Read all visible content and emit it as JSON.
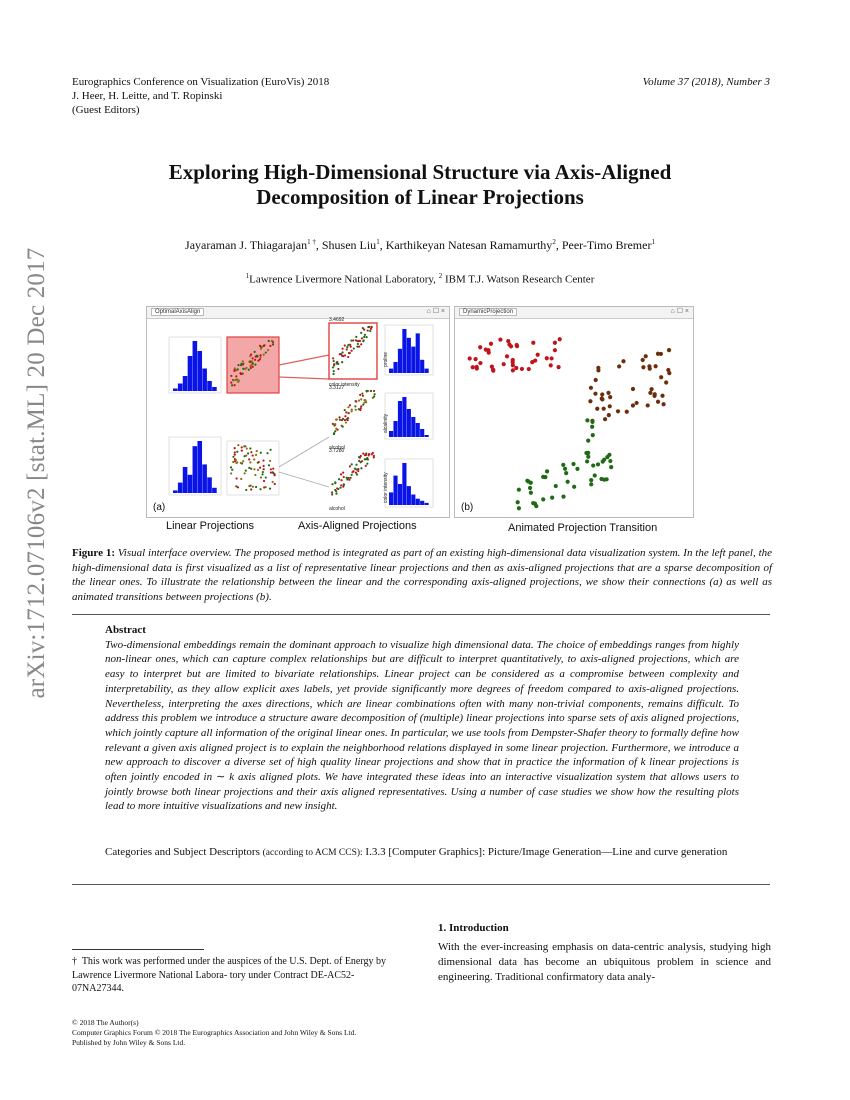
{
  "header": {
    "conf_line1": "Eurographics Conference on Visualization (EuroVis) 2018",
    "conf_line2": "J. Heer, H. Leitte, and T. Ropinski",
    "conf_line3": "(Guest Editors)",
    "volume": "Volume 37 (2018), Number 3"
  },
  "arxiv_stamp": "arXiv:1712.07106v2  [stat.ML]  20 Dec 2017",
  "title_line1": "Exploring High-Dimensional Structure via Axis-Aligned",
  "title_line2": "Decomposition of Linear Projections",
  "authors": {
    "a1": "Jayaraman J. Thiagarajan",
    "a1_sup": "1 †",
    "a2": "Shusen Liu",
    "a2_sup": "1",
    "a3": "Karthikeyan Natesan Ramamurthy",
    "a3_sup": "2",
    "a4": "Peer-Timo Bremer",
    "a4_sup": "1"
  },
  "affiliations": {
    "sup1": "1",
    "aff1": "Lawrence Livermore National Laboratory,",
    "sup2": "2",
    "aff2": "IBM T.J. Watson Research Center"
  },
  "figure": {
    "left_tab": "OptimalAxisAlign",
    "right_tab": "DynamicProjection",
    "tab_controls": "⌂ ☐ ×",
    "label_a": "(a)",
    "label_b": "(b)",
    "caption_linear": "Linear Projections",
    "caption_axis": "Axis-Aligned Projections",
    "caption_animated": "Animated Projection Transition",
    "ax_top_val1": "3.4692",
    "ax_top_val2": "3.3127",
    "ax_top_val3": "3.7280",
    "ax_label_color": "color intensity",
    "ax_label_alcohol": "alcohol",
    "ax_label_proline": "proline",
    "ax_label_alcalinity": "alcalinity",
    "ax_label_color2": "color intensity"
  },
  "figure_caption": {
    "label": "Figure 1:",
    "text": "Visual interface overview. The proposed method is integrated as part of an existing high-dimensional data visualization system. In the left panel, the high-dimensional data is first visualized as a list of representative linear projections and then as axis-aligned projections that are a sparse decomposition of the linear ones. To illustrate the relationship between the linear and the corresponding axis-aligned projections, we show their connections (a) as well as animated transitions between projections (b)."
  },
  "abstract": {
    "heading": "Abstract",
    "text": "Two-dimensional embeddings remain the dominant approach to visualize high dimensional data. The choice of embeddings ranges from highly non-linear ones, which can capture complex relationships but are difficult to interpret quantitatively, to axis-aligned projections, which are easy to interpret but are limited to bivariate relationships. Linear project can be considered as a compromise between complexity and interpretability, as they allow explicit axes labels, yet provide significantly more degrees of freedom compared to axis-aligned projections. Nevertheless, interpreting the axes directions, which are linear combinations often with many non-trivial components, remains difficult. To address this problem we introduce a structure aware decomposition of (multiple) linear projections into sparse sets of axis aligned projections, which jointly capture all information of the original linear ones. In particular, we use tools from Dempster-Shafer theory to formally define how relevant a given axis aligned project is to explain the neighborhood relations displayed in some linear projection. Furthermore, we introduce a new approach to discover a diverse set of high quality linear projections and show that in practice the information of k linear projections is often jointly encoded in ∼ k axis aligned plots. We have integrated these ideas into an interactive visualization system that allows users to jointly browse both linear projections and their axis aligned representatives. Using a number of case studies we show how the resulting plots lead to more intuitive visualizations and new insight."
  },
  "categories": {
    "label": "Categories and Subject Descriptors",
    "paren": "(according to ACM CCS):",
    "text": "I.3.3 [Computer Graphics]: Picture/Image Generation—Line and curve generation"
  },
  "intro": {
    "heading": "1. Introduction",
    "text": "With the ever-increasing emphasis on data-centric analysis, studying high dimensional data has become an ubiquitous problem in science and engineering. Traditional confirmatory data analy-"
  },
  "footnote": {
    "mark": "†",
    "text": "This work was performed under the auspices of the U.S. Dept. of Energy by Lawrence Livermore National Labora- tory under Contract DE-AC52-07NA27344."
  },
  "copyright": {
    "line1": "© 2018 The Author(s)",
    "line2": "Computer Graphics Forum © 2018 The Eurographics Association and John Wiley & Sons Ltd. Published by John Wiley & Sons Ltd."
  }
}
